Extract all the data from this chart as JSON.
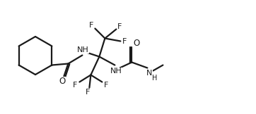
{
  "background_color": "#ffffff",
  "line_color": "#1a1a1a",
  "line_width": 1.6,
  "font_size": 8.0,
  "fig_width": 3.62,
  "fig_height": 1.62,
  "dpi": 100,
  "xlim": [
    0,
    362
  ],
  "ylim": [
    0,
    162
  ]
}
